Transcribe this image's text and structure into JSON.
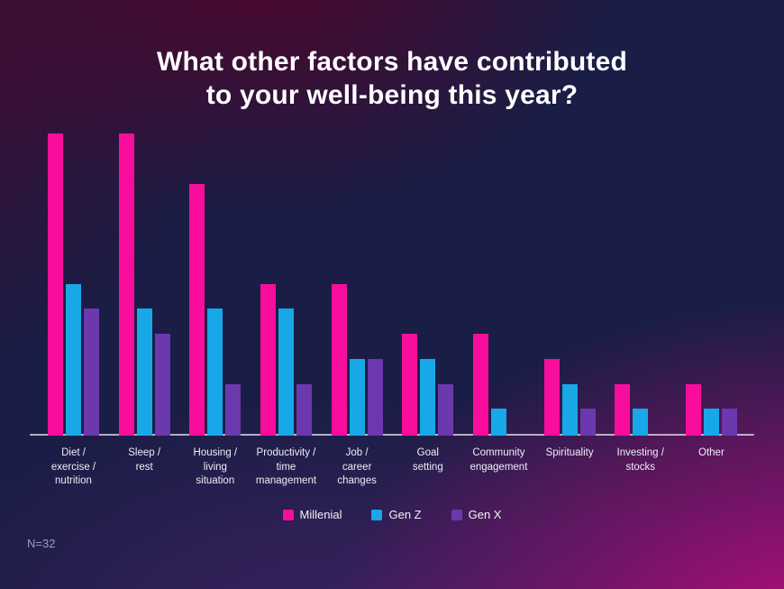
{
  "title_lines": [
    "What other factors have contributed",
    "to your well-being this year?"
  ],
  "footnote": "N=32",
  "legend": {
    "items": [
      {
        "label": "Millenial",
        "color": "#F90D9C"
      },
      {
        "label": "Gen Z",
        "color": "#18A8E8"
      },
      {
        "label": "Gen X",
        "color": "#6C38AE"
      }
    ]
  },
  "colors": {
    "bar_millenial": "#F90D9C",
    "bar_genz": "#18A8E8",
    "bar_genx": "#6C38AE",
    "axis_line": "#D8D3E4",
    "title_text": "#FFFFFF",
    "axis_label_text": "#EFEDF6",
    "footnote_text": "#98A1B9",
    "background_navy": "#1A1D45",
    "background_maroon": "#540328",
    "background_magenta": "#B70D7E"
  },
  "chart_data": {
    "type": "bar",
    "title": "What other factors have contributed to your well-being this year?",
    "categories": [
      "Diet / exercise / nutrition",
      "Sleep / rest",
      "Housing / living situation",
      "Productivity / time management",
      "Job / career changes",
      "Goal setting",
      "Community engagement",
      "Spirituality",
      "Investing / stocks",
      "Other"
    ],
    "category_label_lines": [
      [
        "Diet /",
        "exercise /",
        "nutrition"
      ],
      [
        "Sleep /",
        "rest"
      ],
      [
        "Housing /",
        "living",
        "situation"
      ],
      [
        "Productivity /",
        "time",
        "management"
      ],
      [
        "Job /",
        "career",
        "changes"
      ],
      [
        "Goal",
        "setting"
      ],
      [
        "Community",
        "engagement"
      ],
      [
        "Spirituality"
      ],
      [
        "Investing /",
        "stocks"
      ],
      [
        "Other"
      ]
    ],
    "series": [
      {
        "name": "Millenial",
        "color": "#F90D9C",
        "values": [
          12,
          12,
          10,
          6,
          6,
          4,
          4,
          3,
          2,
          2
        ]
      },
      {
        "name": "Gen Z",
        "color": "#18A8E8",
        "values": [
          6,
          5,
          5,
          5,
          3,
          3,
          1,
          2,
          1,
          1
        ]
      },
      {
        "name": "Gen X",
        "color": "#6C38AE",
        "values": [
          5,
          4,
          2,
          2,
          3,
          2,
          0,
          1,
          0,
          1
        ]
      }
    ],
    "xlabel": "",
    "ylabel": "",
    "ylim": [
      0,
      12
    ],
    "grid": false,
    "legend_position": "bottom",
    "sample_size": "N=32"
  }
}
